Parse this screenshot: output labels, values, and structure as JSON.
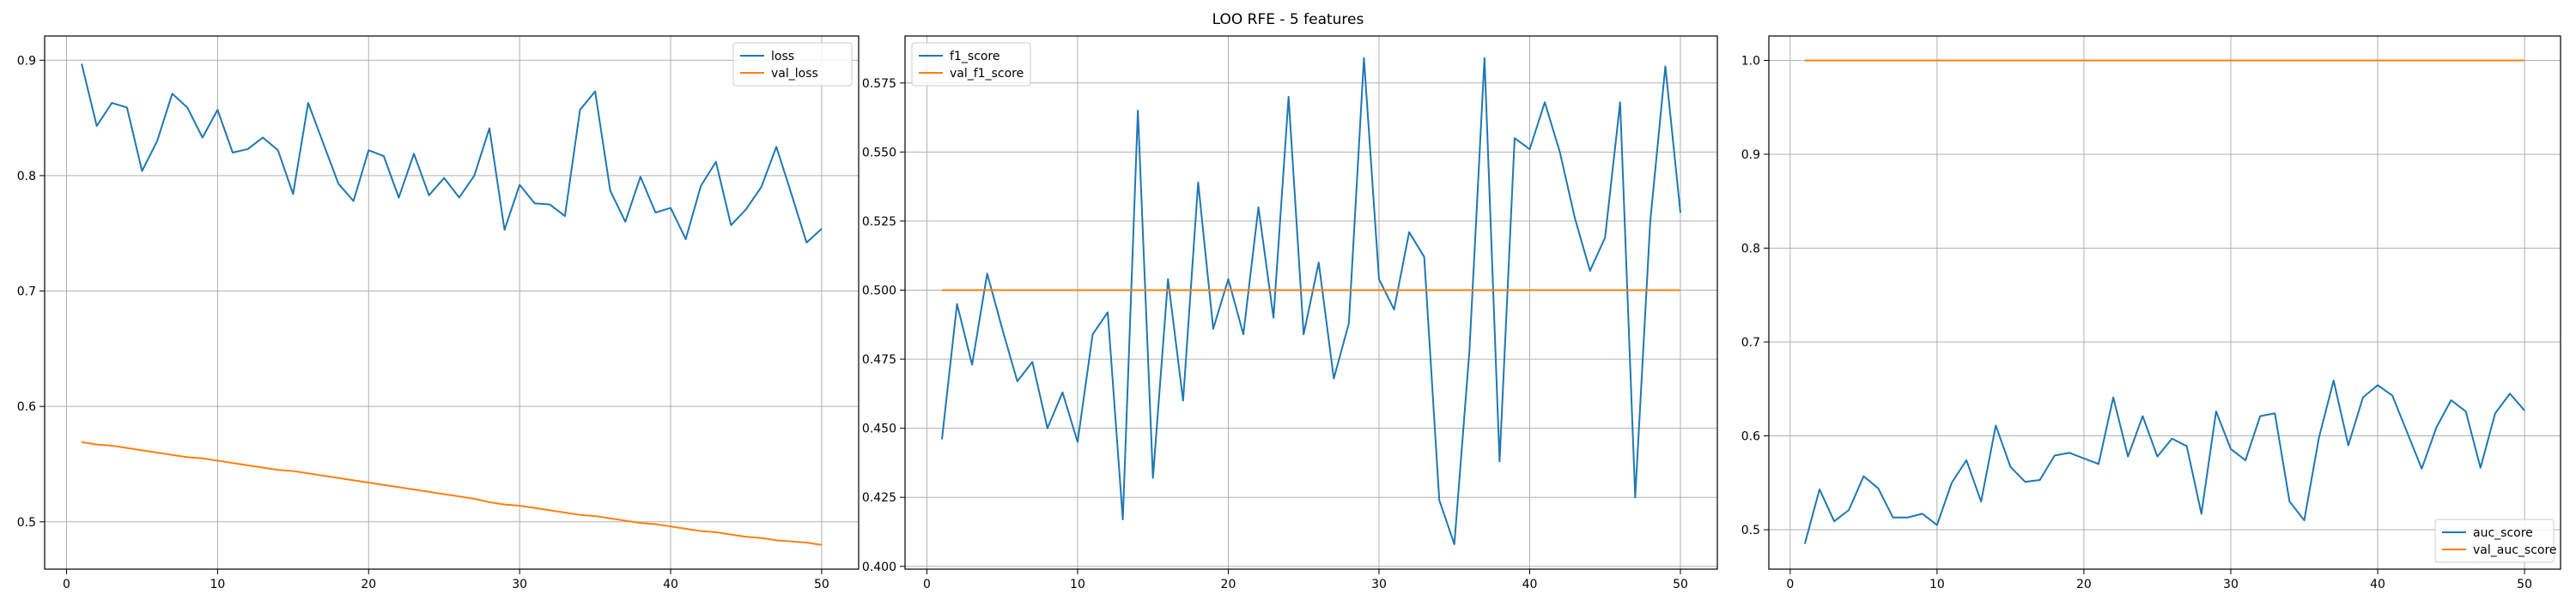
{
  "suptitle": "LOO RFE - 5 features",
  "colors": {
    "series1": "#1f77b4",
    "series2": "#ff7f0e",
    "grid": "#b0b0b0",
    "frame": "#000000"
  },
  "chart_data": [
    {
      "type": "line",
      "title": "",
      "xlabel": "",
      "ylabel": "",
      "xlim": [
        -1.45,
        52.45
      ],
      "ylim": [
        0.459,
        0.921
      ],
      "xticks": [
        0,
        10,
        20,
        30,
        40,
        50
      ],
      "yticks": [
        0.5,
        0.6,
        0.7,
        0.8,
        0.9
      ],
      "ytick_labels": [
        "0.5",
        "0.6",
        "0.7",
        "0.8",
        "0.9"
      ],
      "grid": true,
      "legend_position": "top-right",
      "x": [
        1,
        2,
        3,
        4,
        5,
        6,
        7,
        8,
        9,
        10,
        11,
        12,
        13,
        14,
        15,
        16,
        17,
        18,
        19,
        20,
        21,
        22,
        23,
        24,
        25,
        26,
        27,
        28,
        29,
        30,
        31,
        32,
        33,
        34,
        35,
        36,
        37,
        38,
        39,
        40,
        41,
        42,
        43,
        44,
        45,
        46,
        47,
        48,
        49,
        50
      ],
      "series": [
        {
          "name": "loss",
          "color": "#1f77b4",
          "values": [
            0.897,
            0.843,
            0.863,
            0.859,
            0.804,
            0.83,
            0.871,
            0.859,
            0.833,
            0.857,
            0.82,
            0.823,
            0.833,
            0.822,
            0.784,
            0.863,
            0.828,
            0.793,
            0.778,
            0.822,
            0.817,
            0.781,
            0.819,
            0.783,
            0.798,
            0.781,
            0.8,
            0.841,
            0.753,
            0.792,
            0.776,
            0.775,
            0.765,
            0.857,
            0.873,
            0.787,
            0.76,
            0.799,
            0.768,
            0.772,
            0.745,
            0.791,
            0.812,
            0.757,
            0.771,
            0.79,
            0.825,
            0.784,
            0.742,
            0.754
          ]
        },
        {
          "name": "val_loss",
          "color": "#ff7f0e",
          "values": [
            0.569,
            0.567,
            0.566,
            0.564,
            0.562,
            0.56,
            0.558,
            0.556,
            0.555,
            0.553,
            0.551,
            0.549,
            0.547,
            0.545,
            0.544,
            0.542,
            0.54,
            0.538,
            0.536,
            0.534,
            0.532,
            0.53,
            0.528,
            0.526,
            0.524,
            0.522,
            0.52,
            0.517,
            0.515,
            0.514,
            0.512,
            0.51,
            0.508,
            0.506,
            0.505,
            0.503,
            0.501,
            0.499,
            0.498,
            0.496,
            0.494,
            0.492,
            0.491,
            0.489,
            0.487,
            0.486,
            0.484,
            0.483,
            0.482,
            0.48
          ]
        }
      ]
    },
    {
      "type": "line",
      "title": "",
      "xlabel": "",
      "ylabel": "",
      "xlim": [
        -1.45,
        52.45
      ],
      "ylim": [
        0.399,
        0.592
      ],
      "xticks": [
        0,
        10,
        20,
        30,
        40,
        50
      ],
      "yticks": [
        0.4,
        0.425,
        0.45,
        0.475,
        0.5,
        0.525,
        0.55,
        0.575
      ],
      "ytick_labels": [
        "0.400",
        "0.425",
        "0.450",
        "0.475",
        "0.500",
        "0.525",
        "0.550",
        "0.575"
      ],
      "grid": true,
      "legend_position": "top-left",
      "x": [
        1,
        2,
        3,
        4,
        5,
        6,
        7,
        8,
        9,
        10,
        11,
        12,
        13,
        14,
        15,
        16,
        17,
        18,
        19,
        20,
        21,
        22,
        23,
        24,
        25,
        26,
        27,
        28,
        29,
        30,
        31,
        32,
        33,
        34,
        35,
        36,
        37,
        38,
        39,
        40,
        41,
        42,
        43,
        44,
        45,
        46,
        47,
        48,
        49,
        50
      ],
      "series": [
        {
          "name": "f1_score",
          "color": "#1f77b4",
          "values": [
            0.446,
            0.495,
            0.473,
            0.506,
            0.486,
            0.467,
            0.474,
            0.45,
            0.463,
            0.445,
            0.484,
            0.492,
            0.417,
            0.565,
            0.432,
            0.504,
            0.46,
            0.539,
            0.486,
            0.504,
            0.484,
            0.53,
            0.49,
            0.57,
            0.484,
            0.51,
            0.468,
            0.488,
            0.584,
            0.504,
            0.493,
            0.521,
            0.512,
            0.424,
            0.408,
            0.478,
            0.584,
            0.438,
            0.555,
            0.551,
            0.568,
            0.55,
            0.526,
            0.507,
            0.519,
            0.568,
            0.425,
            0.525,
            0.581,
            0.528
          ]
        },
        {
          "name": "val_f1_score",
          "color": "#ff7f0e",
          "values": [
            0.5,
            0.5,
            0.5,
            0.5,
            0.5,
            0.5,
            0.5,
            0.5,
            0.5,
            0.5,
            0.5,
            0.5,
            0.5,
            0.5,
            0.5,
            0.5,
            0.5,
            0.5,
            0.5,
            0.5,
            0.5,
            0.5,
            0.5,
            0.5,
            0.5,
            0.5,
            0.5,
            0.5,
            0.5,
            0.5,
            0.5,
            0.5,
            0.5,
            0.5,
            0.5,
            0.5,
            0.5,
            0.5,
            0.5,
            0.5,
            0.5,
            0.5,
            0.5,
            0.5,
            0.5,
            0.5,
            0.5,
            0.5,
            0.5,
            0.5
          ]
        }
      ]
    },
    {
      "type": "line",
      "title": "",
      "xlabel": "",
      "ylabel": "",
      "xlim": [
        -1.45,
        52.45
      ],
      "ylim": [
        0.458,
        1.026
      ],
      "xticks": [
        0,
        10,
        20,
        30,
        40,
        50
      ],
      "yticks": [
        0.5,
        0.6,
        0.7,
        0.8,
        0.9,
        1.0
      ],
      "ytick_labels": [
        "0.5",
        "0.6",
        "0.7",
        "0.8",
        "0.9",
        "1.0"
      ],
      "grid": true,
      "legend_position": "bottom-right",
      "x": [
        1,
        2,
        3,
        4,
        5,
        6,
        7,
        8,
        9,
        10,
        11,
        12,
        13,
        14,
        15,
        16,
        17,
        18,
        19,
        20,
        21,
        22,
        23,
        24,
        25,
        26,
        27,
        28,
        29,
        30,
        31,
        32,
        33,
        34,
        35,
        36,
        37,
        38,
        39,
        40,
        41,
        42,
        43,
        44,
        45,
        46,
        47,
        48,
        49,
        50
      ],
      "series": [
        {
          "name": "auc_score",
          "color": "#1f77b4",
          "values": [
            0.485,
            0.543,
            0.509,
            0.521,
            0.557,
            0.544,
            0.513,
            0.513,
            0.517,
            0.505,
            0.55,
            0.574,
            0.53,
            0.611,
            0.567,
            0.551,
            0.553,
            0.579,
            0.582,
            0.576,
            0.57,
            0.641,
            0.578,
            0.621,
            0.578,
            0.597,
            0.589,
            0.517,
            0.626,
            0.586,
            0.574,
            0.621,
            0.624,
            0.53,
            0.51,
            0.598,
            0.659,
            0.59,
            0.641,
            0.654,
            0.643,
            0.604,
            0.565,
            0.609,
            0.638,
            0.626,
            0.566,
            0.624,
            0.645,
            0.627
          ]
        },
        {
          "name": "val_auc_score",
          "color": "#ff7f0e",
          "values": [
            1.0,
            1.0,
            1.0,
            1.0,
            1.0,
            1.0,
            1.0,
            1.0,
            1.0,
            1.0,
            1.0,
            1.0,
            1.0,
            1.0,
            1.0,
            1.0,
            1.0,
            1.0,
            1.0,
            1.0,
            1.0,
            1.0,
            1.0,
            1.0,
            1.0,
            1.0,
            1.0,
            1.0,
            1.0,
            1.0,
            1.0,
            1.0,
            1.0,
            1.0,
            1.0,
            1.0,
            1.0,
            1.0,
            1.0,
            1.0,
            1.0,
            1.0,
            1.0,
            1.0,
            1.0,
            1.0,
            1.0,
            1.0,
            1.0,
            1.0
          ]
        }
      ]
    }
  ]
}
